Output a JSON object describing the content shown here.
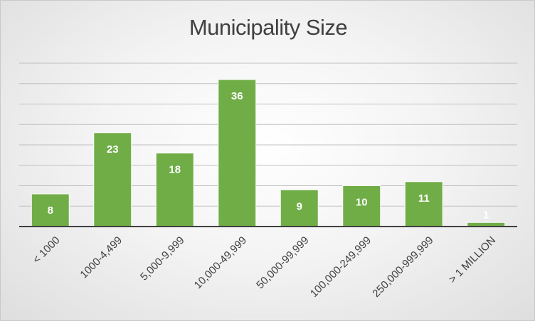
{
  "chart_data": {
    "type": "bar",
    "title": "Municipality Size",
    "categories": [
      "< 1000",
      "1000-4,499",
      "5,000-9,999",
      "10,000-49,999",
      "50,000-99,999",
      "100,000-249,999",
      "250,000-999,999",
      "> 1 MILLION"
    ],
    "values": [
      8,
      23,
      18,
      36,
      9,
      10,
      11,
      1
    ],
    "data_labels": [
      "8",
      "23",
      "18",
      "36",
      "9",
      "10",
      "11",
      "1"
    ],
    "ylim": [
      0,
      40
    ],
    "y_gridline_step": 5,
    "y_axis_labels_shown": false,
    "grid": true,
    "legend": "none",
    "bar_color": "#70ad47",
    "bar_edge_color": "#ffffff",
    "data_label_color": "#ffffff",
    "category_label_color": "#404040",
    "title_color": "#404040",
    "gridline_color": "#c0c0c0",
    "axis_color": "#404040"
  }
}
